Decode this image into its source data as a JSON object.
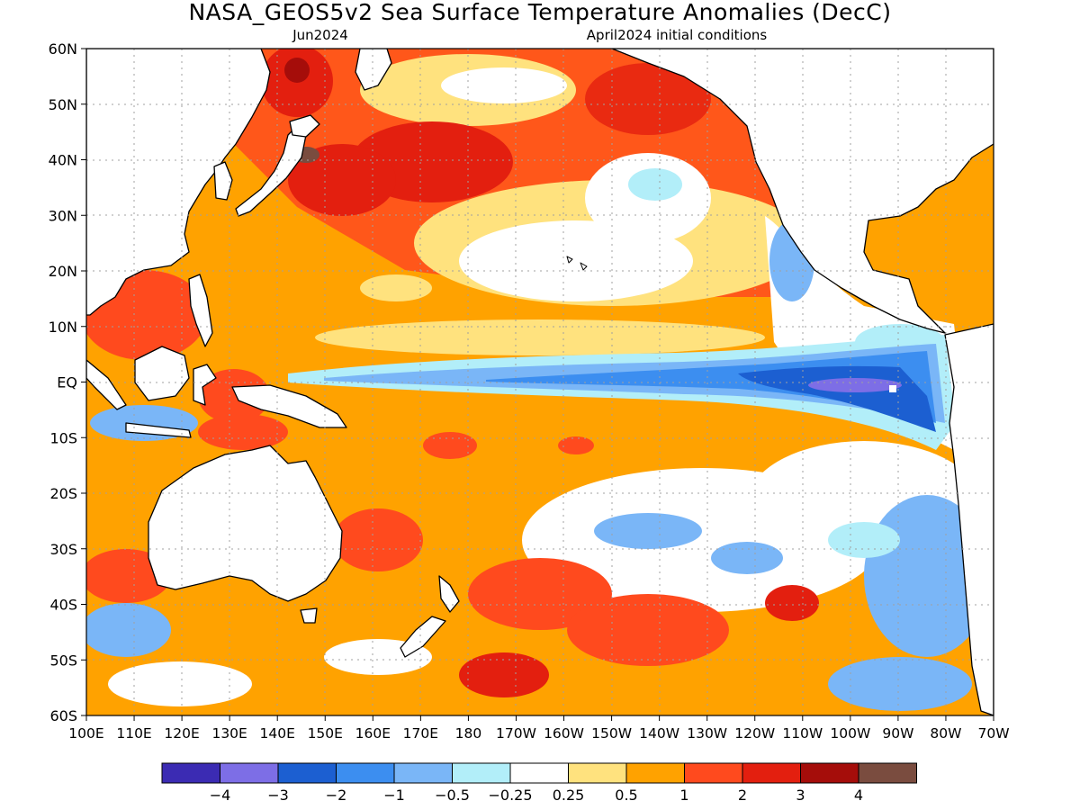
{
  "title": "NASA_GEOS5v2 Sea Surface Temperature Anomalies (DecC)",
  "subtitle_left": "Jun2024",
  "subtitle_right": "April2024 initial conditions",
  "lat_labels": [
    "60N",
    "50N",
    "40N",
    "30N",
    "20N",
    "10N",
    "EQ",
    "10S",
    "20S",
    "30S",
    "40S",
    "50S",
    "60S"
  ],
  "lon_labels": [
    "100E",
    "110E",
    "120E",
    "130E",
    "140E",
    "150E",
    "160E",
    "170E",
    "180",
    "170W",
    "160W",
    "150W",
    "140W",
    "130W",
    "120W",
    "110W",
    "100W",
    "90W",
    "80W",
    "70W"
  ],
  "colorbar": {
    "colors": [
      "#3b2bb3",
      "#7d6ee6",
      "#1c5fd1",
      "#3c8ef0",
      "#7ab6f7",
      "#b2eef9",
      "#ffffff",
      "#ffe27e",
      "#ffa200",
      "#ff4a1e",
      "#e31f0f",
      "#a50d0a",
      "#7a4c3f"
    ],
    "labels": [
      "−4",
      "−3",
      "−2",
      "−1",
      "−0.5",
      "−0.25",
      "0.25",
      "0.5",
      "1",
      "2",
      "3",
      "4"
    ]
  },
  "palette": {
    "land": "#ffffff",
    "coast": "#000000",
    "grid": "#a0a0a0"
  }
}
